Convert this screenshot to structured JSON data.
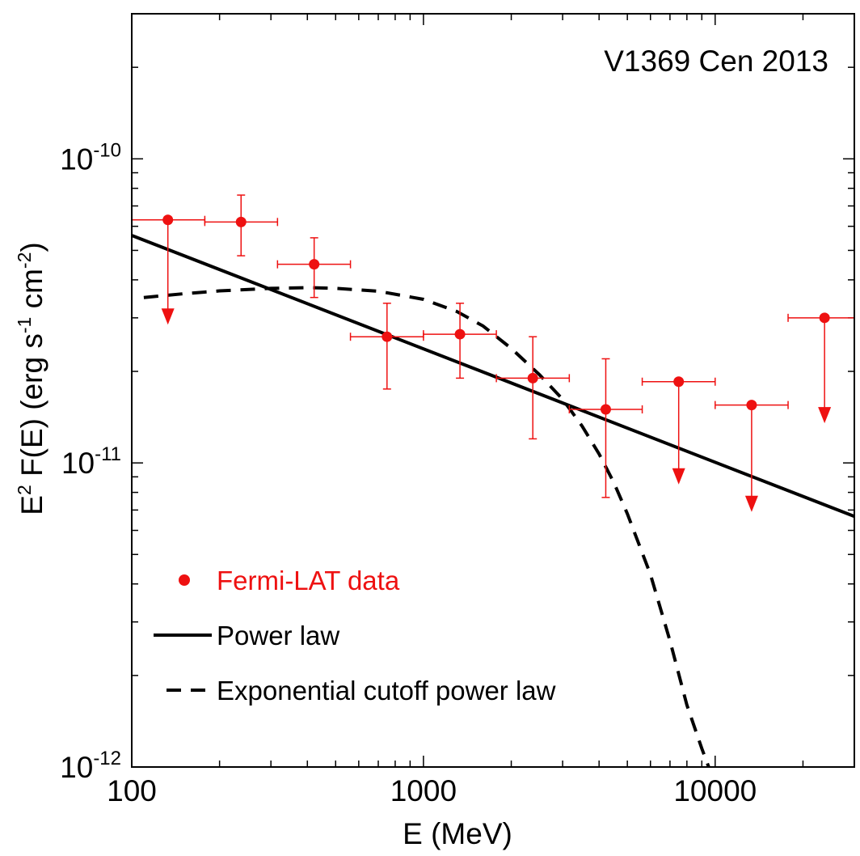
{
  "chart_data": {
    "type": "scatter",
    "title": "V1369 Cen 2013",
    "xlabel": "E (MeV)",
    "ylabel": {
      "prefix": "E",
      "prefix_sup": "2",
      "main": " F(E) (erg s",
      "sup1": "-1",
      "mid": " cm",
      "sup2": "-2",
      "suffix": ")"
    },
    "xscale": "log",
    "yscale": "log",
    "xlim": [
      100,
      30000
    ],
    "ylim": [
      1e-12,
      3e-10
    ],
    "x_ticks": [
      {
        "value": 100,
        "label": "100"
      },
      {
        "value": 1000,
        "label": "1000"
      },
      {
        "value": 10000,
        "label": "10000"
      }
    ],
    "y_ticks": [
      {
        "value": 1e-12,
        "base": "10",
        "exp": "-12"
      },
      {
        "value": 1e-11,
        "base": "10",
        "exp": "-11"
      },
      {
        "value": 1e-10,
        "base": "10",
        "exp": "-10"
      }
    ],
    "colors": {
      "data": "#ee1111",
      "model": "#000000"
    },
    "legend": {
      "position": "bottom-left",
      "entries": [
        {
          "label": "Fermi-LAT data",
          "style": "marker"
        },
        {
          "label": "Power law",
          "style": "solid"
        },
        {
          "label": "Exponential cutoff power law",
          "style": "dashed"
        }
      ]
    },
    "series": [
      {
        "name": "Fermi-LAT data",
        "points": [
          {
            "x": 133,
            "y": 6.3e-11,
            "xlo": 100,
            "xhi": 178,
            "upper_limit": true,
            "arrow_to": 2.85e-11
          },
          {
            "x": 237,
            "y": 6.2e-11,
            "xlo": 178,
            "xhi": 316,
            "ylo": 4.8e-11,
            "yhi": 7.6e-11,
            "upper_limit": false
          },
          {
            "x": 422,
            "y": 4.5e-11,
            "xlo": 316,
            "xhi": 562,
            "ylo": 3.5e-11,
            "yhi": 5.5e-11,
            "upper_limit": false
          },
          {
            "x": 750,
            "y": 2.6e-11,
            "xlo": 562,
            "xhi": 1000,
            "ylo": 1.75e-11,
            "yhi": 3.35e-11,
            "upper_limit": false
          },
          {
            "x": 1334,
            "y": 2.65e-11,
            "xlo": 1000,
            "xhi": 1778,
            "ylo": 1.9e-11,
            "yhi": 3.35e-11,
            "upper_limit": false
          },
          {
            "x": 2371,
            "y": 1.9e-11,
            "xlo": 1778,
            "xhi": 3162,
            "ylo": 1.2e-11,
            "yhi": 2.6e-11,
            "upper_limit": false
          },
          {
            "x": 4217,
            "y": 1.5e-11,
            "xlo": 3162,
            "xhi": 5623,
            "ylo": 7.7e-12,
            "yhi": 2.2e-11,
            "upper_limit": false
          },
          {
            "x": 7499,
            "y": 1.85e-11,
            "xlo": 5623,
            "xhi": 10000,
            "upper_limit": true,
            "arrow_to": 8.5e-12
          },
          {
            "x": 13335,
            "y": 1.55e-11,
            "xlo": 10000,
            "xhi": 17783,
            "upper_limit": true,
            "arrow_to": 6.9e-12
          },
          {
            "x": 23714,
            "y": 3e-11,
            "xlo": 17783,
            "xhi": 31623,
            "upper_limit": true,
            "arrow_to": 1.35e-11
          }
        ]
      },
      {
        "name": "Power law",
        "style": "solid",
        "model": "powerlaw",
        "amplitude_at_100": 5.6e-11,
        "index": -0.373,
        "x_range": [
          100,
          30000
        ]
      },
      {
        "name": "Exponential cutoff power law",
        "style": "dashed",
        "model": "cutoff",
        "x": [
          110,
          150,
          200,
          300,
          400,
          500,
          700,
          1000,
          1300,
          1600,
          2000,
          2500,
          3000,
          3500,
          4000,
          4500,
          5000,
          6000,
          7000,
          8000,
          9000,
          9500
        ],
        "y": [
          3.5e-11,
          3.6e-11,
          3.68e-11,
          3.75e-11,
          3.77e-11,
          3.75e-11,
          3.67e-11,
          3.45e-11,
          3.15e-11,
          2.82e-11,
          2.38e-11,
          1.95e-11,
          1.62e-11,
          1.32e-11,
          1.07e-11,
          8.6e-12,
          6.8e-12,
          4.3e-12,
          2.6e-12,
          1.6e-12,
          1.15e-12,
          1e-12
        ]
      }
    ]
  }
}
